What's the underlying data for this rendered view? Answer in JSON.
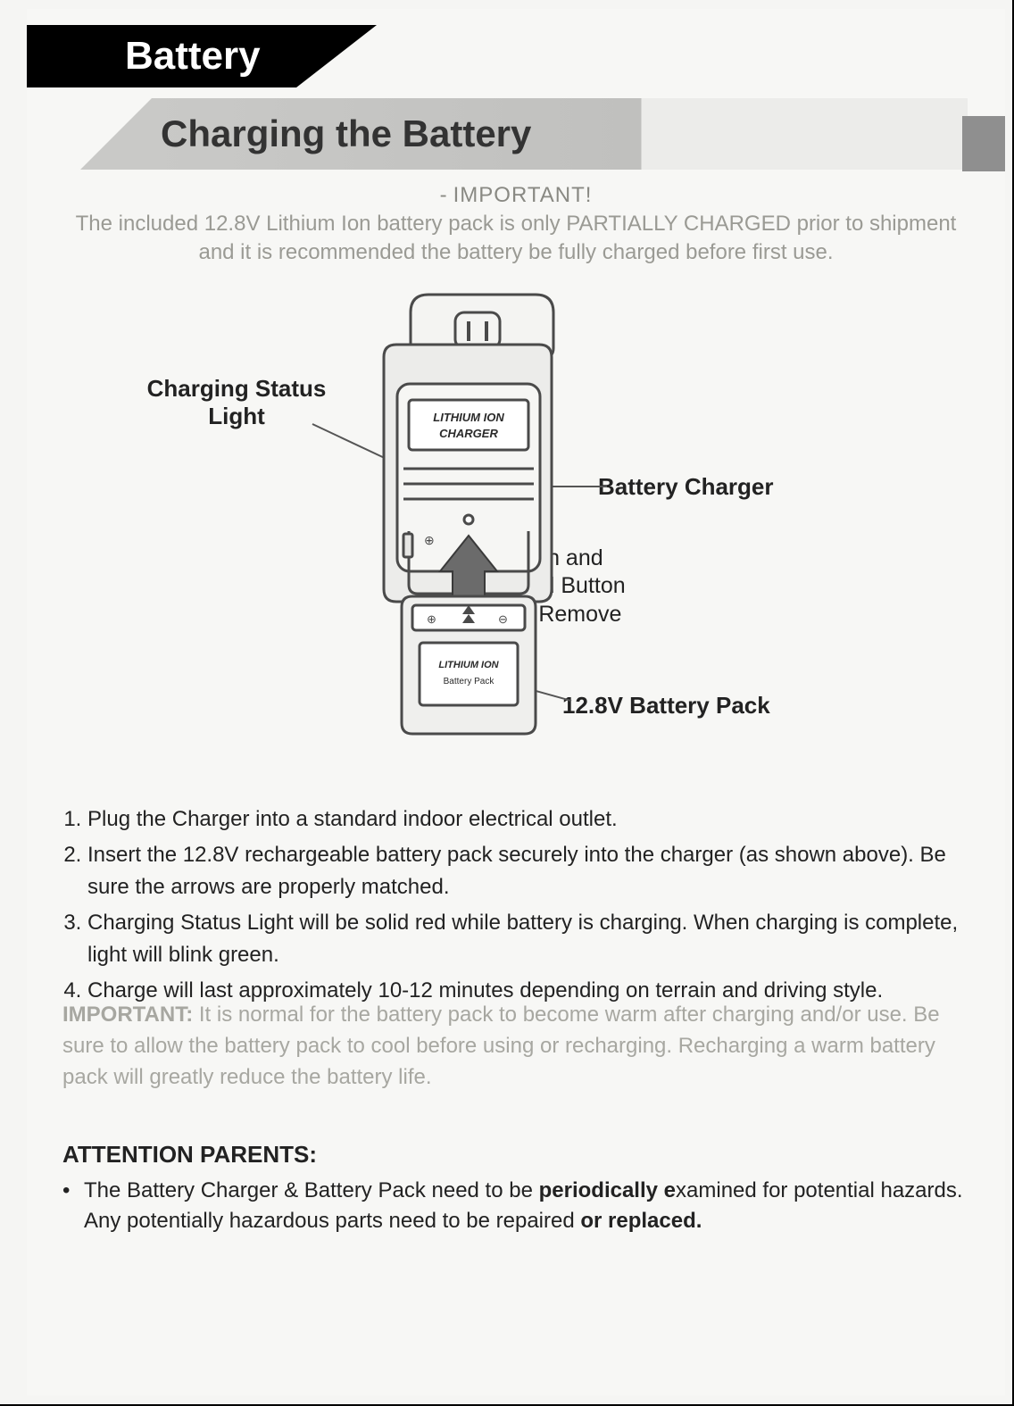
{
  "header": {
    "tab_title": "Battery",
    "subtitle": "Charging the Battery"
  },
  "important_top": {
    "label": "IMPORTANT!",
    "text": "The included 12.8V Lithium Ion battery pack is only PARTIALLY CHARGED prior to shipment and it is recommended the battery be fully charged before first use."
  },
  "diagram": {
    "callout_status_light": "Charging Status\nLight",
    "callout_charger": "Battery Charger",
    "callout_push_hold": "Push and\nHold Button\nTo Remove",
    "callout_battery_pack": "12.8V Battery Pack",
    "charger_label_line1": "LITHIUM ION",
    "charger_label_line2": "CHARGER",
    "battery_label_line1": "LITHIUM ION",
    "battery_label_line2": "Battery Pack",
    "colors": {
      "stroke": "#4a4a4a",
      "fill_light": "#f4f4f2",
      "fill_mid": "#e3e3e1",
      "arrow": "#6b6b6b"
    }
  },
  "instructions": {
    "items": [
      "Plug the Charger into a standard indoor electrical outlet.",
      "Insert the 12.8V rechargeable battery pack securely into the charger (as shown above). Be sure the arrows are properly matched.",
      "Charging Status Light will be solid red while battery is charging. When charging is complete, light will blink green.",
      "Charge will last approximately 10-12 minutes depending on terrain and driving style."
    ]
  },
  "important_warm": {
    "label": "IMPORTANT:",
    "text": "It is normal for the battery pack to become warm after charging and/or use. Be sure to allow the battery pack to cool before using or recharging. Recharging a warm battery pack will greatly reduce the battery life."
  },
  "attention": {
    "heading": "ATTENTION PARENTS:",
    "bullet_pre": "The Battery Charger & Battery Pack need to be ",
    "bullet_bold1": "periodically e",
    "bullet_mid": "xamined for potential hazards. Any potentially hazardous parts need to be repaired ",
    "bullet_bold2": "or replaced."
  },
  "style": {
    "page_bg": "#f7f7f5",
    "tab_bg": "#000000",
    "tab_text": "#ffffff",
    "subtitle_bar_left": "#c9c9c7",
    "subtitle_bar_right": "#ececea",
    "faded_text": "#9a9a94",
    "body_text": "#222222"
  }
}
